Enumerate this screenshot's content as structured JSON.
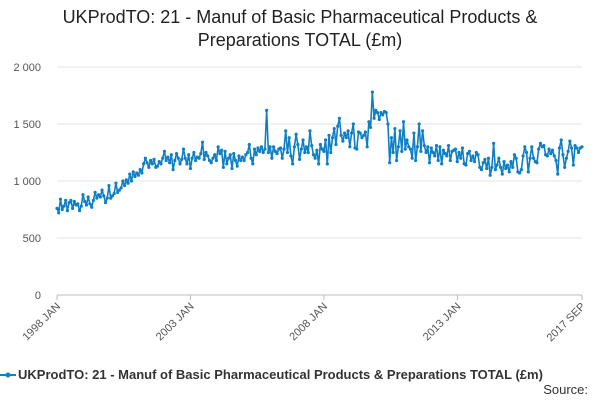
{
  "chart_data": {
    "type": "line",
    "title_lines": [
      "UKProdTO: 21 - Manuf of Basic Pharmaceutical Products &",
      "Preparations TOTAL (£m)"
    ],
    "xlabel": "",
    "ylabel": "",
    "ylim": [
      0,
      2000
    ],
    "yticks": [
      0,
      500,
      1000,
      1500,
      2000
    ],
    "ytick_labels": [
      "0",
      "500",
      "1 000",
      "1 500",
      "2 000"
    ],
    "x_start": "1998-01",
    "x_end": "2017-09",
    "xtick_labels": [
      "1998 JAN",
      "2003 JAN",
      "2008 JAN",
      "2013 JAN",
      "2017 SEP"
    ],
    "xtick_dates": [
      "1998-01",
      "2003-01",
      "2008-01",
      "2013-01",
      "2017-09"
    ],
    "grid": "horizontal",
    "legend": "bottom",
    "series": [
      {
        "name": "UKProdTO: 21 - Manuf of Basic Pharmaceutical Products & Preparations TOTAL (£m)",
        "color": "#0e7fc4",
        "values": [
          760,
          720,
          840,
          750,
          780,
          830,
          740,
          810,
          830,
          760,
          820,
          790,
          800,
          740,
          780,
          880,
          820,
          790,
          860,
          800,
          770,
          830,
          900,
          850,
          880,
          860,
          920,
          870,
          810,
          850,
          960,
          850,
          870,
          890,
          980,
          900,
          920,
          940,
          1000,
          960,
          1010,
          980,
          1060,
          1000,
          1080,
          1040,
          1070,
          1050,
          1100,
          1070,
          1150,
          1200,
          1160,
          1120,
          1180,
          1150,
          1190,
          1120,
          1130,
          1170,
          1150,
          1200,
          1260,
          1180,
          1210,
          1160,
          1230,
          1100,
          1180,
          1240,
          1200,
          1150,
          1190,
          1280,
          1200,
          1150,
          1230,
          1110,
          1200,
          1250,
          1180,
          1210,
          1200,
          1240,
          1340,
          1190,
          1250,
          1220,
          1180,
          1160,
          1200,
          1230,
          1180,
          1300,
          1240,
          1270,
          1120,
          1260,
          1150,
          1200,
          1230,
          1110,
          1240,
          1180,
          1130,
          1220,
          1180,
          1210,
          1180,
          1230,
          1250,
          1320,
          1200,
          1150,
          1280,
          1230,
          1290,
          1260,
          1300,
          1250,
          1280,
          1620,
          1250,
          1300,
          1200,
          1300,
          1260,
          1240,
          1280,
          1290,
          1200,
          1280,
          1440,
          1250,
          1380,
          1220,
          1150,
          1300,
          1410,
          1320,
          1190,
          1280,
          1360,
          1250,
          1300,
          1250,
          1440,
          1310,
          1230,
          1200,
          1270,
          1150,
          1320,
          1280,
          1260,
          1360,
          1150,
          1400,
          1250,
          1380,
          1460,
          1320,
          1480,
          1550,
          1400,
          1350,
          1420,
          1380,
          1440,
          1300,
          1420,
          1500,
          1290,
          1280,
          1430,
          1420,
          1380,
          1400,
          1430,
          1300,
          1520,
          1470,
          1780,
          1550,
          1620,
          1600,
          1540,
          1600,
          1580,
          1610,
          1600,
          1500,
          1160,
          1380,
          1250,
          1460,
          1180,
          1300,
          1440,
          1260,
          1520,
          1280,
          1360,
          1300,
          1280,
          1200,
          1420,
          1180,
          1300,
          1500,
          1260,
          1440,
          1310,
          1250,
          1300,
          1160,
          1290,
          1250,
          1220,
          1310,
          1180,
          1300,
          1150,
          1270,
          1240,
          1220,
          1310,
          1180,
          1260,
          1270,
          1280,
          1170,
          1250,
          1200,
          1290,
          1150,
          1140,
          1240,
          1260,
          1180,
          1220,
          1170,
          1250,
          1230,
          1120,
          1100,
          1160,
          1190,
          1110,
          1200,
          1050,
          1120,
          1330,
          1100,
          1140,
          1200,
          1120,
          1060,
          1170,
          1110,
          1140,
          1080,
          1170,
          1120,
          1230,
          1200,
          1080,
          1070,
          1100,
          1220,
          1300,
          1250,
          1080,
          1200,
          1300,
          1200,
          1170,
          1160,
          1280,
          1330,
          1300,
          1310,
          1230,
          1220,
          1280,
          1240,
          1270,
          1220,
          1180,
          1060,
          1290,
          1360,
          1230,
          1120,
          1200,
          1260,
          1350,
          1290,
          1140,
          1310,
          1290,
          1250,
          1290,
          1300
        ]
      }
    ]
  },
  "source": {
    "label": "Source:"
  }
}
